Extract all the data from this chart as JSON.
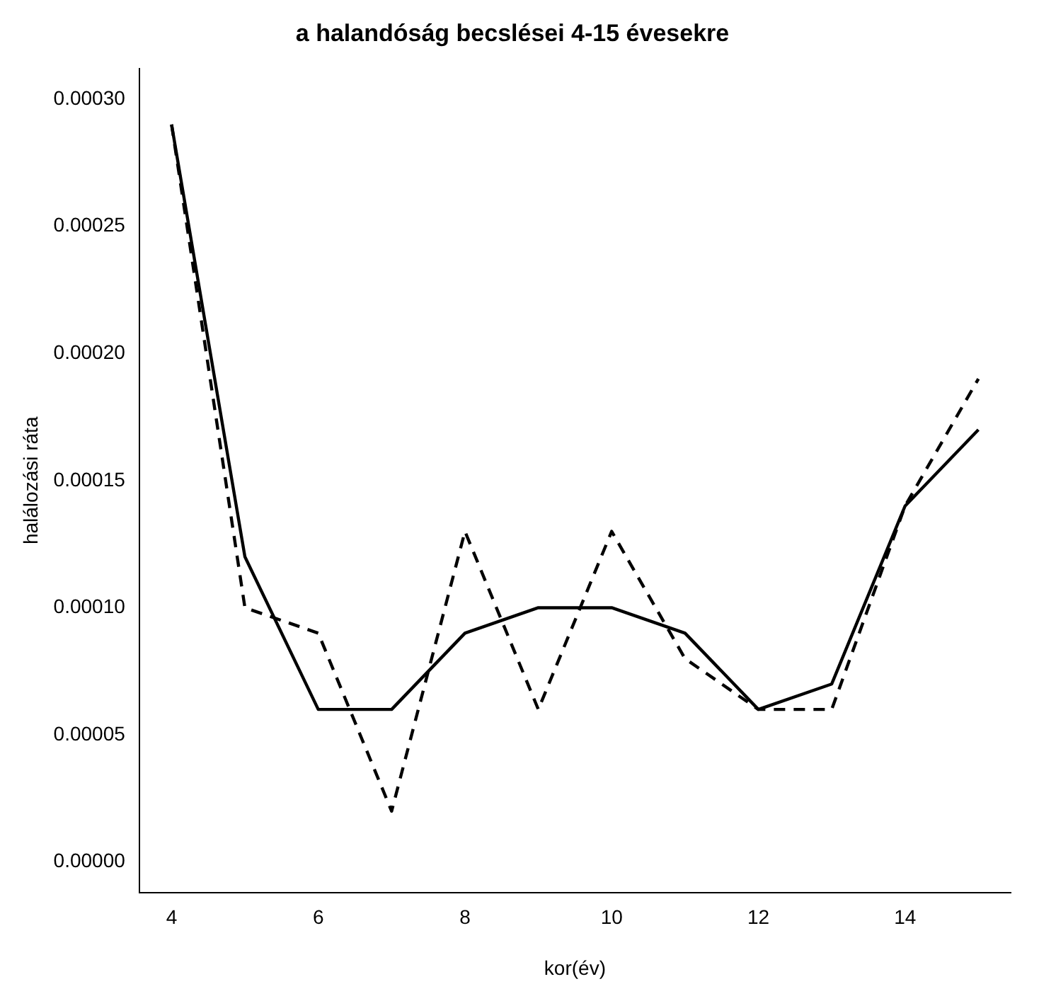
{
  "chart_data": {
    "type": "line",
    "title": "a halandóság becslései 4-15 évesekre",
    "xlabel": "kor(év)",
    "ylabel": "halálozási ráta",
    "x": [
      4,
      5,
      6,
      7,
      8,
      9,
      10,
      11,
      12,
      13,
      14,
      15
    ],
    "series": [
      {
        "color": "#000000",
        "line_style": "solid",
        "values": [
          0.00029,
          0.00012,
          6e-05,
          6e-05,
          9e-05,
          0.0001,
          0.0001,
          9e-05,
          6e-05,
          7e-05,
          0.00014,
          0.00017
        ]
      },
      {
        "color": "#000000",
        "line_style": "dashed",
        "values": [
          0.00029,
          0.0001,
          9e-05,
          2e-05,
          0.00013,
          6e-05,
          0.00013,
          8e-05,
          6e-05,
          6e-05,
          0.00014,
          0.00019
        ]
      }
    ],
    "xlim": [
      3.56,
      15.44
    ],
    "xticks": [
      4,
      6,
      8,
      10,
      12,
      14
    ],
    "ylim": [
      -1.2e-05,
      0.000312
    ],
    "yticks": [
      {
        "value": 0,
        "label": "0.00000"
      },
      {
        "value": 5e-05,
        "label": "0.00005"
      },
      {
        "value": 0.0001,
        "label": "0.00010"
      },
      {
        "value": 0.00015,
        "label": "0.00015"
      },
      {
        "value": 0.0002,
        "label": "0.00020"
      },
      {
        "value": 0.00025,
        "label": "0.00025"
      },
      {
        "value": 0.0003,
        "label": "0.00030"
      }
    ],
    "grid": false,
    "legend": false,
    "marker": "none"
  }
}
